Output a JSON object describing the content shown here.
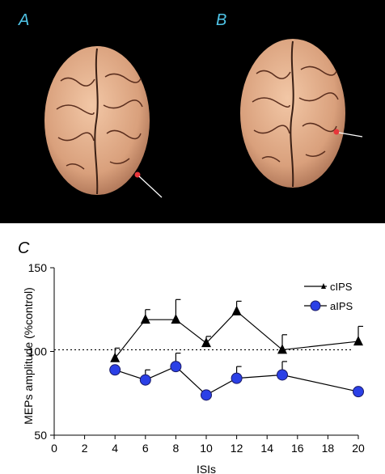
{
  "panels": {
    "a_label": "A",
    "b_label": "B",
    "c_label": "C"
  },
  "colors": {
    "panel_label": "#4fc3e6",
    "brain": "#e9b38f",
    "marker": "#e8353a",
    "clps_series": "#000000",
    "alps_fill": "#2b40e6",
    "alps_stroke": "#1a1a66"
  },
  "chart_data": {
    "type": "line",
    "title": "",
    "xlabel": "ISIs",
    "ylabel": "MEPs amplitude (%control)",
    "xlim": [
      0,
      20
    ],
    "ylim": [
      50,
      150
    ],
    "xticks": [
      0,
      2,
      4,
      6,
      8,
      10,
      12,
      14,
      16,
      18,
      20
    ],
    "yticks": [
      50,
      100,
      150
    ],
    "reference_line": 101,
    "legend_position": "top-right",
    "series": [
      {
        "name": "cIPS",
        "marker": "triangle",
        "x": [
          4,
          6,
          8,
          10,
          12,
          15,
          20
        ],
        "y": [
          96,
          119,
          119,
          105,
          124,
          101,
          106
        ],
        "err": [
          6,
          6,
          12,
          4,
          6,
          9,
          9
        ]
      },
      {
        "name": "aIPS",
        "marker": "circle",
        "x": [
          4,
          6,
          8,
          10,
          12,
          15,
          20
        ],
        "y": [
          89,
          83,
          91,
          74,
          84,
          86,
          76
        ],
        "err": [
          0,
          6,
          8,
          0,
          7,
          8,
          0
        ]
      }
    ]
  }
}
